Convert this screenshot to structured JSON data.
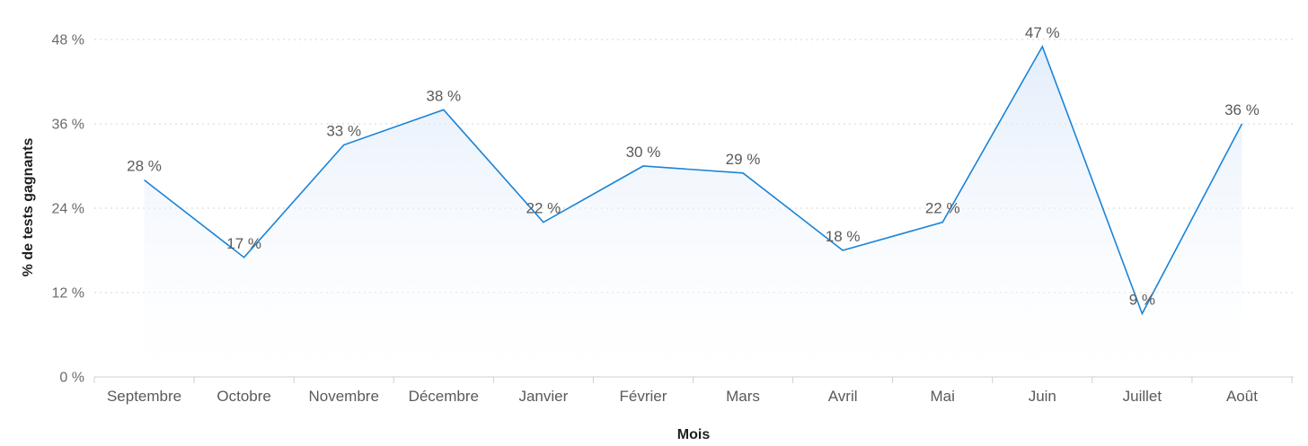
{
  "chart_data": {
    "type": "line",
    "area_fill": true,
    "xlabel": "Mois",
    "ylabel": "% de tests gagnants",
    "categories": [
      "Septembre",
      "Octobre",
      "Novembre",
      "Décembre",
      "Janvier",
      "Février",
      "Mars",
      "Avril",
      "Mai",
      "Juin",
      "Juillet",
      "Août"
    ],
    "values": [
      28,
      17,
      33,
      38,
      22,
      30,
      29,
      18,
      22,
      47,
      9,
      36
    ],
    "data_labels": [
      "28 %",
      "17 %",
      "33 %",
      "38 %",
      "22 %",
      "30 %",
      "29 %",
      "18 %",
      "22 %",
      "47 %",
      "9 %",
      "36 %"
    ],
    "ylim": [
      0,
      48
    ],
    "yticks": [
      0,
      12,
      24,
      36,
      48
    ],
    "ytick_labels": [
      "0 %",
      "12 %",
      "24 %",
      "36 %",
      "48 %"
    ],
    "grid": true,
    "colors": {
      "line": "#1a84d6",
      "area_top": "#d9e7fa",
      "area_bottom": "#ffffff",
      "grid": "#d6d6d6",
      "axis": "#cfcfcf"
    }
  }
}
